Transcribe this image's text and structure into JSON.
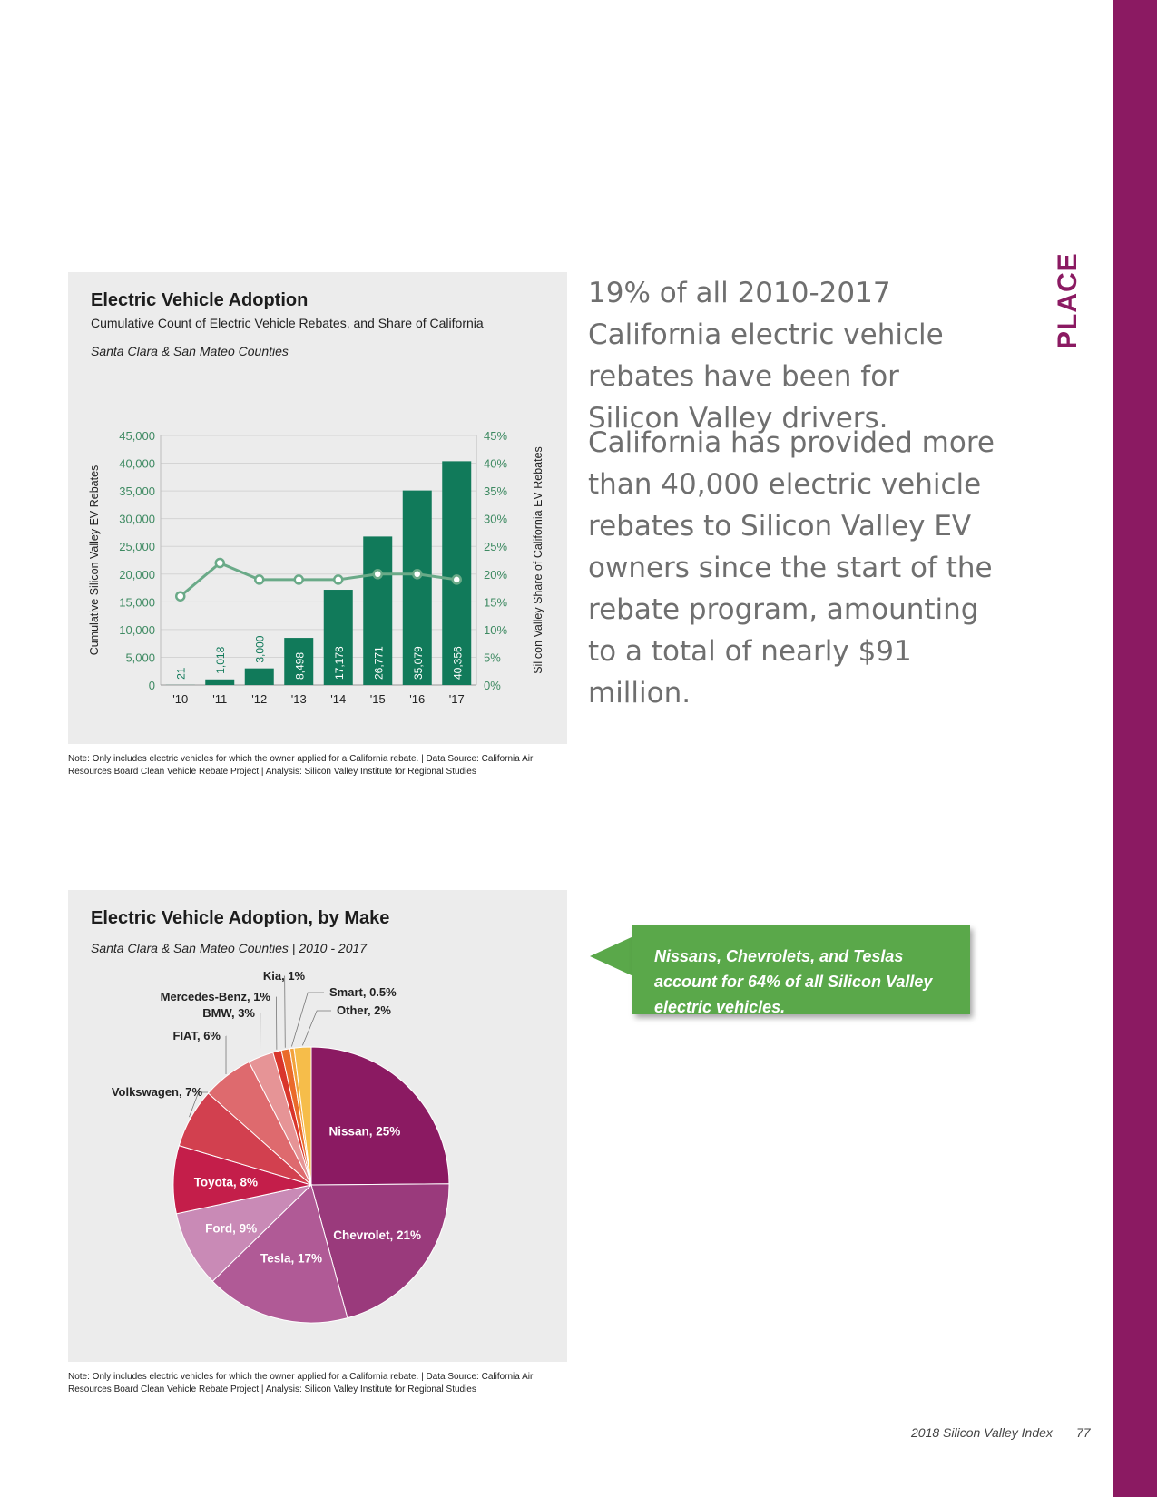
{
  "sidebar": {
    "label": "PLACE"
  },
  "chart_data": [
    {
      "type": "bar",
      "title": "Electric Vehicle Adoption",
      "subtitle": "Cumulative Count of Electric Vehicle Rebates, and Share of California",
      "region": "Santa Clara & San Mateo Counties",
      "categories": [
        "'10",
        "'11",
        "'12",
        "'13",
        "'14",
        "'15",
        "'16",
        "'17"
      ],
      "series": [
        {
          "name": "Cumulative Silicon Valley EV Rebates",
          "type": "bar",
          "axis": "left",
          "values": [
            21,
            1018,
            3000,
            8498,
            17178,
            26771,
            35079,
            40356
          ],
          "labels": [
            "21",
            "1,018",
            "3,000",
            "8,498",
            "17,178",
            "26,771",
            "35,079",
            "40,356"
          ]
        },
        {
          "name": "Silicon Valley Share of California EV Rebates",
          "type": "line",
          "axis": "right",
          "values": [
            16,
            22,
            19,
            19,
            19,
            20,
            20,
            19
          ]
        }
      ],
      "ylabel": "Cumulative Silicon Valley EV Rebates",
      "y2label": "Silicon Valley Share of California EV Rebates",
      "ylim": [
        0,
        45000
      ],
      "y2lim": [
        0,
        45
      ],
      "yticks": [
        "0",
        "5,000",
        "10,000",
        "15,000",
        "20,000",
        "25,000",
        "30,000",
        "35,000",
        "40,000",
        "45,000"
      ],
      "y2ticks": [
        "0%",
        "5%",
        "10%",
        "15%",
        "20%",
        "25%",
        "30%",
        "35%",
        "40%",
        "45%"
      ],
      "colors": {
        "bar": "#117a5a",
        "line": "#6aaa88",
        "axis_text": "#3e8a62"
      }
    },
    {
      "type": "pie",
      "title": "Electric Vehicle Adoption, by Make",
      "region": "Santa Clara & San Mateo Counties | 2010 - 2017",
      "slices": [
        {
          "label": "Nissan, 25%",
          "value": 25,
          "color": "#8b1a62"
        },
        {
          "label": "Chevrolet, 21%",
          "value": 21,
          "color": "#9a3a7c"
        },
        {
          "label": "Tesla, 17%",
          "value": 17,
          "color": "#b05a96"
        },
        {
          "label": "Ford, 9%",
          "value": 9,
          "color": "#c98ab6"
        },
        {
          "label": "Toyota, 8%",
          "value": 8,
          "color": "#c41e4a"
        },
        {
          "label": "Volkswagen, 7%",
          "value": 7,
          "color": "#d2404f"
        },
        {
          "label": "FIAT, 6%",
          "value": 6,
          "color": "#de6a6e"
        },
        {
          "label": "BMW, 3%",
          "value": 3,
          "color": "#e69496"
        },
        {
          "label": "Mercedes-Benz, 1%",
          "value": 1,
          "color": "#d9352b"
        },
        {
          "label": "Kia, 1%",
          "value": 1,
          "color": "#ea6a2a"
        },
        {
          "label": "Smart, 0.5%",
          "value": 0.5,
          "color": "#f2a23a"
        },
        {
          "label": "Other, 2%",
          "value": 2,
          "color": "#f6bd4a"
        }
      ]
    }
  ],
  "notes": {
    "line1": "Note: Only includes electric vehicles for which the owner applied for a California rebate. | Data Source: California Air",
    "line2": "Resources Board Clean Vehicle Rebate Project | Analysis: Silicon Valley Institute for Regional Studies"
  },
  "body": {
    "p1": "19% of all 2010-2017 California electric vehicle rebates have been for Silicon Valley drivers.",
    "p2": "California has provided more than 40,000 electric vehicle rebates to Silicon Valley EV owners since the start of the rebate program, amounting to a total of nearly $91 million."
  },
  "callout": {
    "text": "Nissans, Chevrolets, and Teslas account for 64% of all Silicon Valley electric vehicles."
  },
  "footer": {
    "title": "2018 Silicon Valley Index",
    "page": "77"
  }
}
